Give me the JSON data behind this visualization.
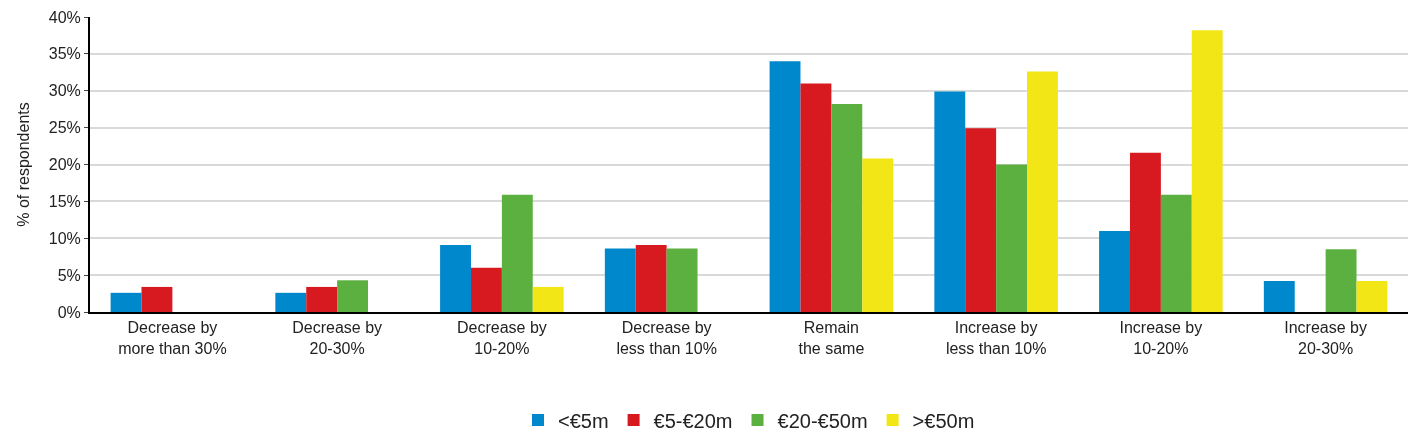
{
  "chart_data": {
    "type": "bar",
    "ylabel": "% of respondents",
    "categories": [
      "Decrease by\nmore than 30%",
      "Decrease by\n20-30%",
      "Decrease by\n10-20%",
      "Decrease by\nless than 10%",
      "Remain\nthe same",
      "Increase by\nless than 10%",
      "Increase by\n10-20%",
      "Increase by\n20-30%"
    ],
    "series": [
      {
        "name": "<€5m",
        "color": "#0088cc",
        "values": [
          2.6,
          2.6,
          9.1,
          8.6,
          34.0,
          29.9,
          11.0,
          4.2
        ]
      },
      {
        "name": "€5-€20m",
        "color": "#d71920",
        "values": [
          3.4,
          3.4,
          6.0,
          9.1,
          31.0,
          24.9,
          21.6,
          0
        ]
      },
      {
        "name": "€20-€50m",
        "color": "#5cb040",
        "values": [
          0,
          4.3,
          15.9,
          8.6,
          28.2,
          20.0,
          15.9,
          8.5
        ]
      },
      {
        "name": ">€50m",
        "color": "#f2e616",
        "values": [
          0,
          0,
          3.4,
          0,
          20.8,
          32.6,
          38.2,
          4.2
        ]
      }
    ],
    "ylim": [
      0,
      40
    ],
    "yticks": [
      {
        "value": 0,
        "label": "0%"
      },
      {
        "value": 5,
        "label": "5%"
      },
      {
        "value": 10,
        "label": "10%"
      },
      {
        "value": 15,
        "label": "15%"
      },
      {
        "value": 20,
        "label": "20%"
      },
      {
        "value": 25,
        "label": "25%"
      },
      {
        "value": 30,
        "label": "30%"
      },
      {
        "value": 35,
        "label": "35%"
      },
      {
        "value": 40,
        "label": "40%"
      }
    ],
    "grid": "y",
    "legend": "bottom"
  }
}
